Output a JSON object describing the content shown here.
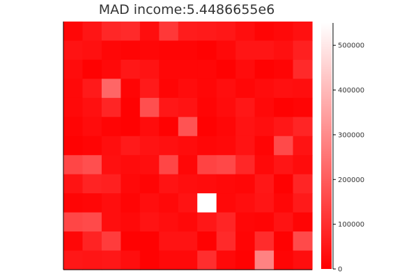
{
  "chart_data": {
    "type": "heatmap",
    "title": "MAD income:5.4486655e6",
    "xlabel": "",
    "ylabel": "",
    "rows": 13,
    "cols": 13,
    "colorbar": {
      "min": 0,
      "max": 550000,
      "ticks": [
        0,
        100000,
        200000,
        300000,
        400000,
        500000
      ],
      "tick_labels": [
        "0",
        "100000",
        "200000",
        "300000",
        "400000",
        "500000"
      ],
      "color_low": "#ff0000",
      "color_high": "#ffffff"
    },
    "values": [
      [
        15000,
        45000,
        85000,
        90000,
        30000,
        120000,
        60000,
        55000,
        50000,
        30000,
        10000,
        20000,
        35000
      ],
      [
        40000,
        35000,
        15000,
        10000,
        15000,
        10000,
        10000,
        5000,
        20000,
        45000,
        45000,
        35000,
        70000
      ],
      [
        25000,
        5000,
        20000,
        50000,
        40000,
        15000,
        15000,
        15000,
        5000,
        25000,
        5000,
        10000,
        90000
      ],
      [
        20000,
        55000,
        220000,
        10000,
        55000,
        10000,
        25000,
        15000,
        30000,
        15000,
        25000,
        35000,
        30000
      ],
      [
        20000,
        35000,
        80000,
        5000,
        170000,
        50000,
        40000,
        10000,
        25000,
        50000,
        20000,
        5000,
        10000
      ],
      [
        10000,
        25000,
        10000,
        5000,
        25000,
        5000,
        180000,
        5000,
        15000,
        40000,
        30000,
        50000,
        80000
      ],
      [
        5000,
        10000,
        30000,
        55000,
        40000,
        35000,
        25000,
        15000,
        20000,
        40000,
        10000,
        160000,
        40000
      ],
      [
        150000,
        170000,
        35000,
        25000,
        30000,
        150000,
        15000,
        145000,
        155000,
        85000,
        20000,
        45000,
        25000
      ],
      [
        40000,
        75000,
        70000,
        20000,
        10000,
        40000,
        30000,
        25000,
        20000,
        15000,
        50000,
        5000,
        80000
      ],
      [
        10000,
        15000,
        30000,
        10000,
        30000,
        20000,
        40000,
        550000,
        20000,
        30000,
        45000,
        15000,
        55000
      ],
      [
        150000,
        160000,
        30000,
        20000,
        40000,
        30000,
        20000,
        50000,
        80000,
        15000,
        10000,
        40000,
        10000
      ],
      [
        15000,
        75000,
        130000,
        5000,
        5000,
        40000,
        40000,
        5000,
        90000,
        10000,
        95000,
        5000,
        160000
      ],
      [
        50000,
        45000,
        50000,
        30000,
        5000,
        20000,
        20000,
        100000,
        20000,
        5000,
        280000,
        10000,
        30000
      ]
    ]
  }
}
